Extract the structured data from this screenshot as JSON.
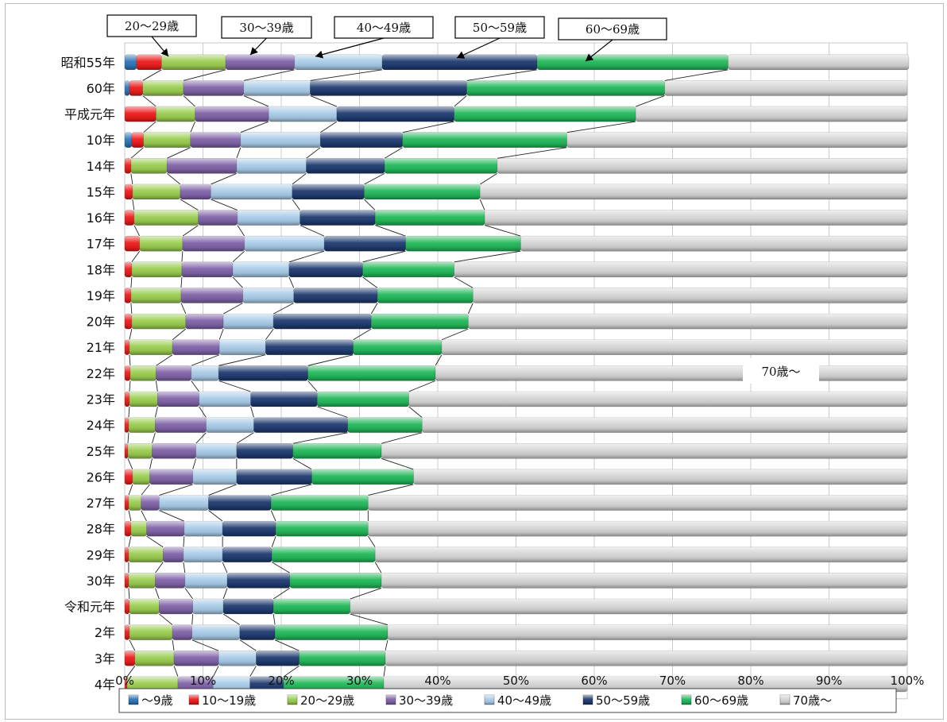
{
  "chart_data": {
    "type": "bar",
    "orientation": "horizontal",
    "stacked": "percent",
    "title": "",
    "xlabel": "",
    "ylabel": "",
    "xlim": [
      0,
      100
    ],
    "xticks": [
      "0%",
      "10%",
      "20%",
      "30%",
      "40%",
      "50%",
      "60%",
      "70%",
      "80%",
      "90%",
      "100%"
    ],
    "grid": true,
    "legend_position": "bottom",
    "categories": [
      "昭和55年",
      "60年",
      "平成元年",
      "10年",
      "14年",
      "15年",
      "16年",
      "17年",
      "18年",
      "19年",
      "20年",
      "21年",
      "22年",
      "23年",
      "24年",
      "25年",
      "26年",
      "27年",
      "28年",
      "29年",
      "30年",
      "令和元年",
      "2年",
      "3年",
      "4年"
    ],
    "series": [
      {
        "name": "〜9歳",
        "color": "#2e75b6",
        "values": [
          1.5,
          0.6,
          0,
          0.9,
          0,
          0,
          0,
          0,
          0,
          0,
          0,
          0,
          0,
          0,
          0,
          0,
          0,
          0,
          0,
          0,
          0,
          0,
          0,
          0,
          0
        ]
      },
      {
        "name": "10〜19歳",
        "color": "#ee1c1c",
        "values": [
          3.2,
          1.7,
          4,
          1.5,
          0.8,
          1,
          1.2,
          1.9,
          0.9,
          0.8,
          0.9,
          0.6,
          0.7,
          0.6,
          0.5,
          0.4,
          1,
          0.5,
          0.8,
          0.5,
          0.5,
          0.6,
          0.6,
          1.3,
          0.3
        ]
      },
      {
        "name": "20〜29歳",
        "color": "#9acd50",
        "values": [
          8.2,
          5.2,
          5,
          6,
          4.6,
          6.1,
          8.2,
          5.5,
          6.4,
          6.4,
          6.9,
          5.5,
          3.3,
          3.6,
          3.4,
          3.1,
          2.2,
          1.6,
          2,
          4.4,
          3.4,
          3.8,
          5.5,
          5,
          6.5
        ]
      },
      {
        "name": "30〜39歳",
        "color": "#8063a8",
        "values": [
          8.8,
          7.7,
          9.4,
          6.4,
          8.9,
          3.9,
          5,
          7.9,
          6.5,
          7.9,
          4.8,
          6,
          4.5,
          5.3,
          6.5,
          5.6,
          5.5,
          2.3,
          4.8,
          2.6,
          3.8,
          4.3,
          2.5,
          5.7,
          4.5
        ]
      },
      {
        "name": "40〜49歳",
        "color": "#a8cbe8",
        "values": [
          11.2,
          8.5,
          8.7,
          10.2,
          8.9,
          10.4,
          8,
          10.2,
          7.2,
          6.5,
          6.4,
          5.9,
          3.5,
          6.6,
          6.1,
          5.2,
          5.6,
          6.3,
          4.9,
          5,
          5.4,
          3.9,
          6.1,
          4.8,
          4.7
        ]
      },
      {
        "name": "50〜59歳",
        "color": "#1f3b70",
        "values": [
          19.8,
          20,
          15,
          10.5,
          10,
          9.2,
          9.6,
          10.4,
          9.4,
          10.7,
          12.5,
          11.2,
          11.4,
          8.5,
          12,
          7.2,
          9.6,
          8,
          6.8,
          6.3,
          8,
          6.4,
          4.5,
          5.5,
          4.3
        ]
      },
      {
        "name": "60〜69歳",
        "color": "#22b85a",
        "values": [
          24.4,
          25.3,
          23.2,
          21,
          14.4,
          14.8,
          14,
          14.7,
          11.7,
          12.2,
          12.4,
          11.3,
          16.3,
          11.7,
          9.5,
          11.3,
          13,
          12.4,
          11.8,
          13.2,
          11.7,
          9.8,
          14.4,
          11,
          12.8
        ]
      },
      {
        "name": "70歳〜",
        "color": "#d4d4d4",
        "values": [
          23.1,
          31,
          34.7,
          43.5,
          52.4,
          54.6,
          54,
          49.4,
          57.9,
          55.5,
          56.1,
          59.5,
          60.3,
          63.7,
          62,
          67.2,
          63.1,
          68.9,
          68.9,
          68,
          67.2,
          71.2,
          66.4,
          66.7,
          66.9
        ]
      }
    ],
    "callouts": [
      "20〜29歳",
      "30〜39歳",
      "40〜49歳",
      "50〜59歳",
      "60〜69歳",
      "70歳〜"
    ]
  }
}
